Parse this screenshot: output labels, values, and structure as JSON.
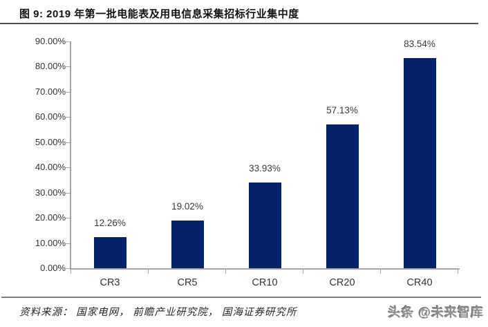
{
  "header": {
    "figure_label": "图 9:",
    "title": "图 9: 2019 年第一批电能表及用电信息采集招标行业集中度"
  },
  "chart_data": {
    "type": "bar",
    "title": "2019 年第一批电能表及用电信息采集招标行业集中度",
    "categories": [
      "CR3",
      "CR5",
      "CR10",
      "CR20",
      "CR40"
    ],
    "values": [
      12.26,
      19.02,
      33.93,
      57.13,
      83.54
    ],
    "value_labels": [
      "12.26%",
      "19.02%",
      "33.93%",
      "57.13%",
      "83.54%"
    ],
    "xlabel": "",
    "ylabel": "",
    "ylim": [
      0,
      90
    ],
    "ytick_step": 10,
    "ytick_labels": [
      "0.00%",
      "10.00%",
      "20.00%",
      "30.00%",
      "40.00%",
      "50.00%",
      "60.00%",
      "70.00%",
      "80.00%",
      "90.00%"
    ],
    "grid": false,
    "legend": "none",
    "bar_color": "#07216b",
    "axis_color": "#a6a6a6"
  },
  "footer": {
    "source": "资料来源：  国家电网，  前瞻产业研究院，  国海证券研究所",
    "watermark": "头条 @未来智库"
  },
  "colors": {
    "bar": "#07216b",
    "axis": "#a6a6a6",
    "title_rule": "#4d4d4d",
    "footer_rule": "#7f7f7f",
    "label_text": "#3a3a3a"
  }
}
